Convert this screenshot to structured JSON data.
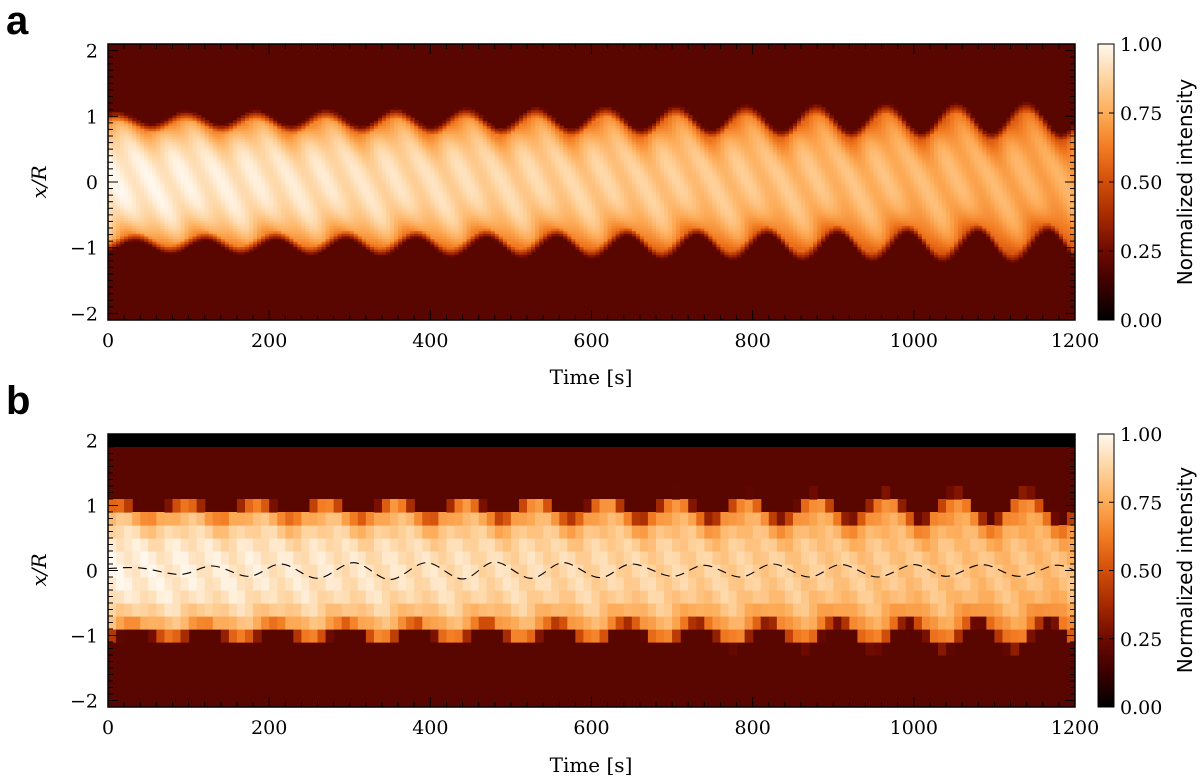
{
  "colors": {
    "colormap": [
      "#000000",
      "#3a0000",
      "#6e0a00",
      "#a42a00",
      "#d24e0a",
      "#f27c22",
      "#fdac58",
      "#fed4a0",
      "#fff8ee"
    ],
    "background_cmap_value": 0.2,
    "reference_line": "#000000"
  },
  "chart_data": [
    {
      "type": "heatmap",
      "panel_label": "a",
      "xlabel": "Time [s]",
      "ylabel": "x/R",
      "xlim": [
        0,
        1200
      ],
      "ylim": [
        -2.1,
        2.1
      ],
      "xticks": [
        0,
        200,
        400,
        600,
        800,
        1000,
        1200
      ],
      "yticks": [
        -2,
        -1,
        0,
        1,
        2
      ],
      "xtick_labels": [
        "0",
        "200",
        "400",
        "600",
        "800",
        "1000",
        "1200"
      ],
      "ytick_labels": [
        "−2",
        "−1",
        "0",
        "1",
        "2"
      ],
      "colorbar": {
        "label": "Normalized intensity",
        "range": [
          0,
          1
        ],
        "ticks": [
          0,
          0.25,
          0.5,
          0.75,
          1
        ],
        "tick_labels": [
          "0.00",
          "0.25",
          "0.50",
          "0.75",
          "1.00"
        ]
      },
      "pattern": {
        "period_s": 87,
        "amplitude_start": 0.06,
        "amplitude_end": 0.14,
        "half_width": 0.85,
        "core_intensity_start": 0.97,
        "core_intensity_end": 0.74,
        "pixelated": false
      }
    },
    {
      "type": "heatmap",
      "panel_label": "b",
      "xlabel": "Time [s]",
      "ylabel": "x/R",
      "xlim": [
        0,
        1200
      ],
      "ylim": [
        -2.1,
        2.1
      ],
      "xticks": [
        0,
        200,
        400,
        600,
        800,
        1000,
        1200
      ],
      "yticks": [
        -2,
        -1,
        0,
        1,
        2
      ],
      "xtick_labels": [
        "0",
        "200",
        "400",
        "600",
        "800",
        "1000",
        "1200"
      ],
      "ytick_labels": [
        "−2",
        "−1",
        "0",
        "1",
        "2"
      ],
      "colorbar": {
        "label": "Normalized intensity",
        "range": [
          0,
          1
        ],
        "ticks": [
          0,
          0.25,
          0.5,
          0.75,
          1
        ],
        "tick_labels": [
          "0.00",
          "0.25",
          "0.50",
          "0.75",
          "1.00"
        ]
      },
      "pattern": {
        "period_s": 87,
        "amplitude_start": 0.06,
        "amplitude_end": 0.12,
        "half_width": 0.88,
        "core_intensity_start": 0.97,
        "core_intensity_end": 0.8,
        "pixelated": true,
        "pixel_size_xR": 0.2,
        "black_band_above": 1.9
      },
      "reference_curve": {
        "style": "dashed",
        "points": [
          [
            0,
            0.03
          ],
          [
            40,
            0.04
          ],
          [
            90,
            -0.06
          ],
          [
            130,
            0.07
          ],
          [
            175,
            -0.09
          ],
          [
            215,
            0.1
          ],
          [
            260,
            -0.12
          ],
          [
            305,
            0.12
          ],
          [
            350,
            -0.14
          ],
          [
            395,
            0.12
          ],
          [
            440,
            -0.13
          ],
          [
            480,
            0.13
          ],
          [
            525,
            -0.12
          ],
          [
            565,
            0.12
          ],
          [
            610,
            -0.11
          ],
          [
            650,
            0.1
          ],
          [
            700,
            -0.09
          ],
          [
            740,
            0.08
          ],
          [
            785,
            -0.1
          ],
          [
            825,
            0.1
          ],
          [
            870,
            -0.1
          ],
          [
            910,
            0.09
          ],
          [
            955,
            -0.1
          ],
          [
            1000,
            0.09
          ],
          [
            1040,
            -0.09
          ],
          [
            1085,
            0.09
          ],
          [
            1130,
            -0.09
          ],
          [
            1175,
            0.08
          ],
          [
            1200,
            0.0
          ]
        ]
      }
    }
  ]
}
